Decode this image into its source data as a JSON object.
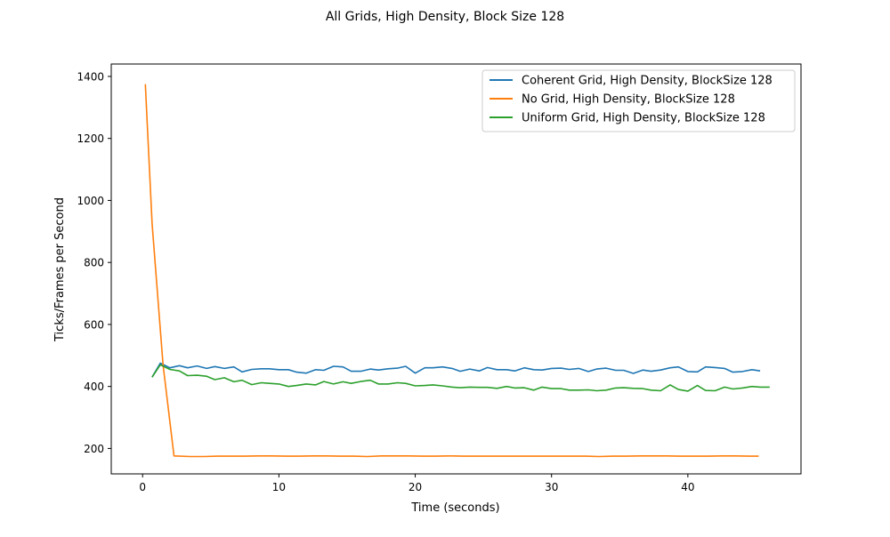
{
  "chart_data": {
    "type": "line",
    "title": "All Grids, High Density, Block Size 128",
    "xlabel": "Time (seconds)",
    "ylabel": "Ticks/Frames per Second",
    "xlim": [
      -2.3,
      48.3
    ],
    "ylim": [
      118,
      1440
    ],
    "xticks": [
      0,
      10,
      20,
      30,
      40
    ],
    "yticks": [
      200,
      400,
      600,
      800,
      1000,
      1200,
      1400
    ],
    "grid": false,
    "legend_position": "top-right",
    "series": [
      {
        "name": "Coherent Grid, High Density, BlockSize 128",
        "color": "#1f77b4",
        "x": [
          0.7,
          1.3,
          2.0,
          2.7,
          3.3,
          4.0,
          4.7,
          5.3,
          6.0,
          6.7,
          7.3,
          8.0,
          8.7,
          9.3,
          10.0,
          10.7,
          11.3,
          12.0,
          12.7,
          13.3,
          14.0,
          14.7,
          15.3,
          16.0,
          16.7,
          17.3,
          18.0,
          18.7,
          19.3,
          20.0,
          20.7,
          21.3,
          22.0,
          22.7,
          23.3,
          24.0,
          24.7,
          25.3,
          26.0,
          26.7,
          27.3,
          28.0,
          28.7,
          29.3,
          30.0,
          30.7,
          31.3,
          32.0,
          32.7,
          33.3,
          34.0,
          34.7,
          35.3,
          36.0,
          36.7,
          37.3,
          38.0,
          38.7,
          39.3,
          40.0,
          40.7,
          41.3,
          42.0,
          42.7,
          43.3,
          44.0,
          44.7,
          45.3
        ],
        "y": [
          430,
          475,
          460,
          467,
          460,
          466,
          458,
          464,
          458,
          463,
          447,
          455,
          457,
          457,
          454,
          454,
          446,
          443,
          454,
          452,
          465,
          463,
          449,
          449,
          456,
          453,
          457,
          459,
          465,
          443,
          460,
          460,
          463,
          458,
          449,
          456,
          450,
          461,
          454,
          454,
          450,
          460,
          454,
          453,
          458,
          459,
          455,
          458,
          448,
          456,
          459,
          452,
          452,
          442,
          453,
          449,
          453,
          460,
          463,
          448,
          447,
          463,
          461,
          458,
          446,
          448,
          454,
          450
        ]
      },
      {
        "name": "No Grid, High Density, BlockSize 128",
        "color": "#ff7f0e",
        "x": [
          0.2,
          0.7,
          1.5,
          2.3,
          3.5,
          4.5,
          5.5,
          6.5,
          7.5,
          8.5,
          9.5,
          10.5,
          11.5,
          12.5,
          13.5,
          14.5,
          15.5,
          16.5,
          17.5,
          18.5,
          19.5,
          20.5,
          21.5,
          22.5,
          23.5,
          24.5,
          25.5,
          26.5,
          27.5,
          28.5,
          29.5,
          30.5,
          31.5,
          32.5,
          33.5,
          34.5,
          35.5,
          36.5,
          37.5,
          38.5,
          39.5,
          40.5,
          41.5,
          42.5,
          43.5,
          44.5,
          45.2
        ],
        "y": [
          1375,
          925,
          470,
          176,
          174,
          174,
          175,
          175,
          175,
          176,
          176,
          175,
          175,
          176,
          176,
          175,
          175,
          174,
          176,
          176,
          176,
          175,
          175,
          176,
          175,
          175,
          175,
          175,
          175,
          175,
          175,
          175,
          175,
          175,
          174,
          175,
          175,
          176,
          176,
          176,
          175,
          175,
          175,
          176,
          176,
          175,
          175
        ]
      },
      {
        "name": "Uniform Grid, High Density, BlockSize 128",
        "color": "#2ca02c",
        "x": [
          0.7,
          1.3,
          2.0,
          2.7,
          3.3,
          4.0,
          4.7,
          5.3,
          6.0,
          6.7,
          7.3,
          8.0,
          8.7,
          9.3,
          10.0,
          10.7,
          11.3,
          12.0,
          12.7,
          13.3,
          14.0,
          14.7,
          15.3,
          16.0,
          16.7,
          17.3,
          18.0,
          18.7,
          19.3,
          20.0,
          20.7,
          21.3,
          22.0,
          22.7,
          23.3,
          24.0,
          24.7,
          25.3,
          26.0,
          26.7,
          27.3,
          28.0,
          28.7,
          29.3,
          30.0,
          30.7,
          31.3,
          32.0,
          32.7,
          33.3,
          34.0,
          34.7,
          35.3,
          36.0,
          36.7,
          37.3,
          38.0,
          38.7,
          39.3,
          40.0,
          40.7,
          41.3,
          42.0,
          42.7,
          43.3,
          44.0,
          44.7,
          45.3,
          46.0
        ],
        "y": [
          430,
          470,
          455,
          450,
          435,
          436,
          433,
          422,
          428,
          415,
          420,
          406,
          412,
          410,
          408,
          400,
          403,
          408,
          405,
          416,
          408,
          415,
          410,
          416,
          420,
          408,
          408,
          412,
          410,
          402,
          403,
          405,
          402,
          398,
          396,
          398,
          397,
          397,
          394,
          400,
          395,
          396,
          388,
          398,
          393,
          393,
          388,
          388,
          389,
          386,
          388,
          395,
          396,
          394,
          393,
          388,
          386,
          405,
          390,
          385,
          403,
          387,
          386,
          398,
          392,
          395,
          400,
          398,
          398
        ]
      }
    ]
  }
}
